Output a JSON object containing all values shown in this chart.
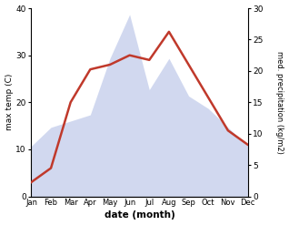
{
  "months": [
    "Jan",
    "Feb",
    "Mar",
    "Apr",
    "May",
    "Jun",
    "Jul",
    "Aug",
    "Sep",
    "Oct",
    "Nov",
    "Dec"
  ],
  "temp": [
    3,
    6,
    20,
    27,
    28,
    30,
    29,
    35,
    28,
    21,
    14,
    11
  ],
  "precip": [
    8,
    11,
    12,
    13,
    22,
    29,
    17,
    22,
    16,
    14,
    11,
    8
  ],
  "temp_ylim": [
    0,
    40
  ],
  "precip_ylim": [
    0,
    30
  ],
  "temp_color": "#c0392b",
  "precip_fill_alpha": 0.45,
  "precip_fill_color": "#99aadd",
  "xlabel": "date (month)",
  "ylabel_left": "max temp (C)",
  "ylabel_right": "med. precipitation (kg/m2)",
  "bg_color": "#ffffff"
}
